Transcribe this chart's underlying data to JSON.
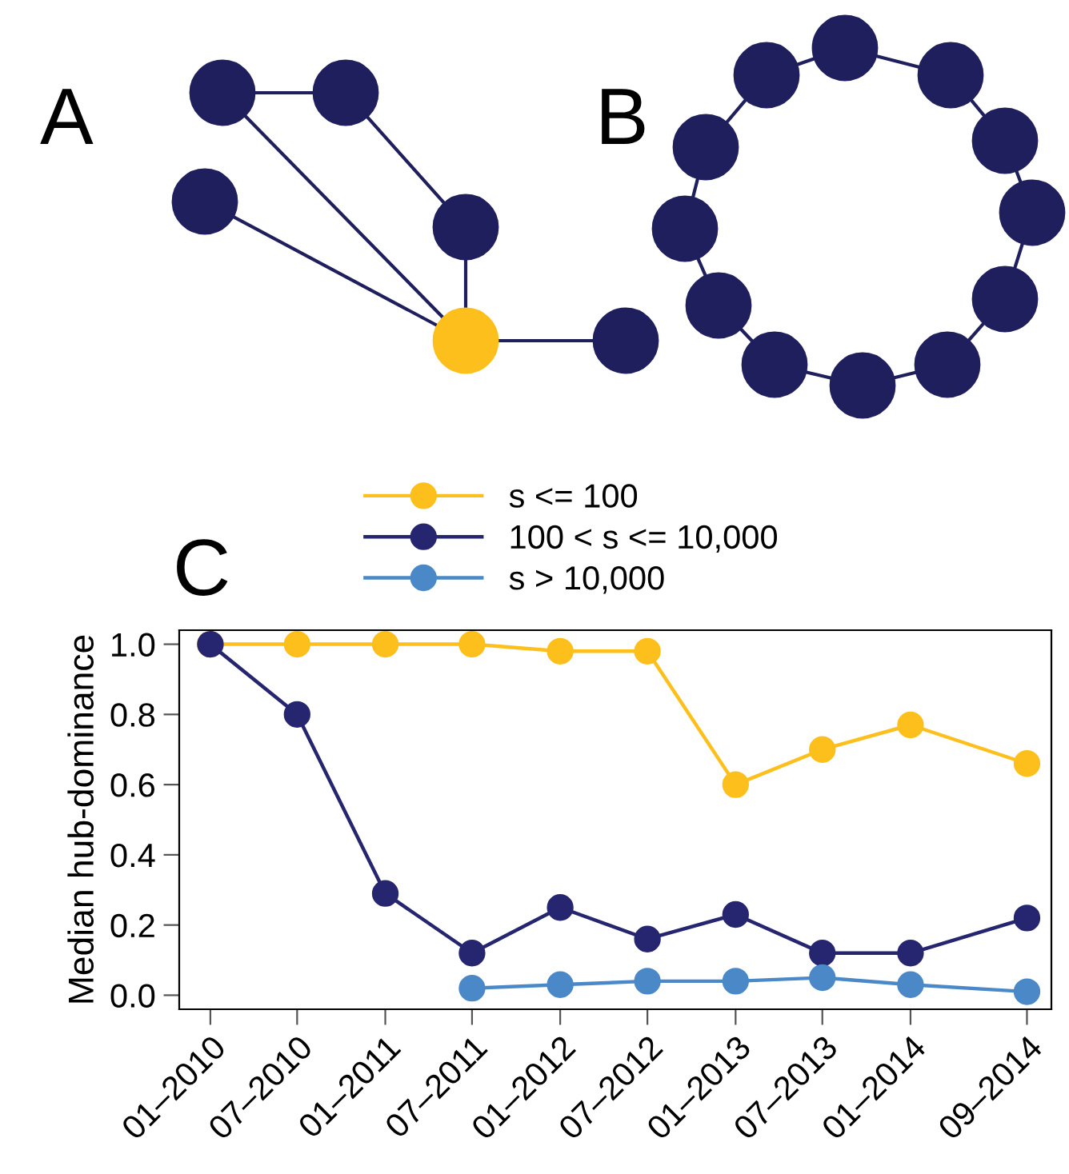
{
  "chart_data": {
    "type": "line",
    "ylabel": "Median hub-dominance",
    "annotations": [
      "A",
      "B",
      "C"
    ],
    "x": [
      "2010-01",
      "2010-07",
      "2011-01",
      "2011-07",
      "2012-01",
      "2012-07",
      "2013-01",
      "2013-07",
      "2014-01",
      "2014-09"
    ],
    "series": [
      {
        "name": "s <= 100",
        "color": "#fdbf1b",
        "values": [
          1.0,
          1.0,
          1.0,
          1.0,
          0.98,
          0.98,
          0.6,
          0.7,
          0.77,
          0.66
        ]
      },
      {
        "name": "100 < s <= 10,000",
        "color": "#252570",
        "values": [
          1.0,
          0.8,
          0.29,
          0.12,
          0.25,
          0.16,
          0.23,
          0.12,
          0.12,
          0.22
        ]
      },
      {
        "name": "s > 10,000",
        "color": "#4a88c7",
        "values": [
          null,
          null,
          null,
          0.02,
          0.03,
          0.04,
          0.04,
          0.05,
          0.03,
          0.01
        ]
      }
    ],
    "xlim": [
      "2009-10-28",
      "2014-10-22"
    ],
    "xticks": [
      {
        "value": "2010-01",
        "label": "01–2010"
      },
      {
        "value": "2010-07",
        "label": "07–2010"
      },
      {
        "value": "2011-01",
        "label": "01–2011"
      },
      {
        "value": "2011-07",
        "label": "07–2011"
      },
      {
        "value": "2012-01",
        "label": "01–2012"
      },
      {
        "value": "2012-07",
        "label": "07–2012"
      },
      {
        "value": "2013-01",
        "label": "01–2013"
      },
      {
        "value": "2013-07",
        "label": "07–2013"
      },
      {
        "value": "2014-01",
        "label": "01–2014"
      },
      {
        "value": "2014-09",
        "label": "09–2014"
      }
    ],
    "ylim": [
      -0.04,
      1.04
    ],
    "yticks": [
      {
        "value": 0,
        "label": "0.0"
      },
      {
        "value": 0.2,
        "label": "0.2"
      },
      {
        "value": 0.4,
        "label": "0.4"
      },
      {
        "value": 0.6,
        "label": "0.6"
      },
      {
        "value": 0.8,
        "label": "0.8"
      },
      {
        "value": 1.0,
        "label": "1.0"
      }
    ],
    "grid": false,
    "legend": "top",
    "marker": "circle",
    "line_style": "solid"
  }
}
